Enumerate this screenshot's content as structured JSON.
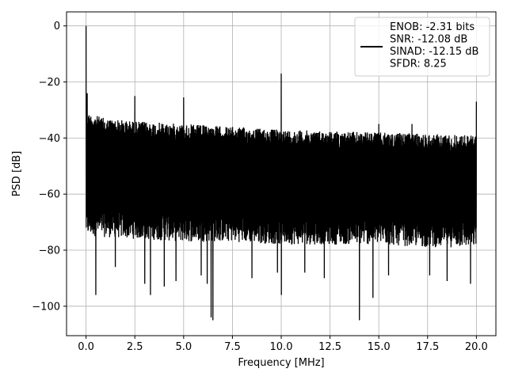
{
  "chart_data": {
    "type": "line",
    "title": "",
    "xlabel": "Frequency [MHz]",
    "ylabel": "PSD [dB]",
    "xlim": [
      -1.0,
      21.0
    ],
    "ylim": [
      -110.5,
      5.0
    ],
    "xticks": [
      0.0,
      2.5,
      5.0,
      7.5,
      10.0,
      12.5,
      15.0,
      17.5,
      20.0
    ],
    "xtick_labels": [
      "0.0",
      "2.5",
      "5.0",
      "7.5",
      "10.0",
      "12.5",
      "15.0",
      "17.5",
      "20.0"
    ],
    "yticks": [
      0,
      -20,
      -40,
      -60,
      -80,
      -100
    ],
    "ytick_labels": [
      "0",
      "−20",
      "−40",
      "−60",
      "−80",
      "−100"
    ],
    "grid": true,
    "legend_position": "top-right",
    "line_color": "#000000",
    "series": [
      {
        "legend_lines": [
          "ENOB: -2.31 bits",
          "SNR: -12.08 dB",
          "SINAD: -12.15 dB",
          "SFDR: 8.25"
        ],
        "noise": {
          "x_range": [
            0.0,
            20.0
          ],
          "upper_envelope": [
            [
              0.05,
              -31
            ],
            [
              1.0,
              -33
            ],
            [
              2.5,
              -34
            ],
            [
              5.0,
              -35
            ],
            [
              7.5,
              -36
            ],
            [
              10.0,
              -37
            ],
            [
              12.5,
              -37.5
            ],
            [
              15.0,
              -38
            ],
            [
              17.5,
              -38.5
            ],
            [
              20.0,
              -39
            ]
          ],
          "lower_envelope": [
            [
              0.05,
              -75
            ],
            [
              2.5,
              -76
            ],
            [
              5.0,
              -77
            ],
            [
              7.5,
              -77
            ],
            [
              10.0,
              -78
            ],
            [
              12.5,
              -78
            ],
            [
              15.0,
              -78
            ],
            [
              17.5,
              -79
            ],
            [
              20.0,
              -79
            ]
          ],
          "deep_dips": [
            [
              0.5,
              -96
            ],
            [
              1.5,
              -86
            ],
            [
              3.0,
              -92
            ],
            [
              3.3,
              -96
            ],
            [
              4.0,
              -93
            ],
            [
              4.6,
              -91
            ],
            [
              5.9,
              -89
            ],
            [
              6.2,
              -92
            ],
            [
              6.4,
              -104
            ],
            [
              6.5,
              -105
            ],
            [
              8.5,
              -90
            ],
            [
              9.8,
              -88
            ],
            [
              10.0,
              -96
            ],
            [
              11.2,
              -88
            ],
            [
              12.2,
              -90
            ],
            [
              14.0,
              -105
            ],
            [
              14.7,
              -97
            ],
            [
              15.5,
              -89
            ],
            [
              17.6,
              -89
            ],
            [
              18.5,
              -91
            ],
            [
              19.7,
              -92
            ]
          ]
        },
        "peaks": [
          [
            0.0,
            0.0
          ],
          [
            0.06,
            -24
          ],
          [
            2.5,
            -25
          ],
          [
            5.0,
            -25.5
          ],
          [
            10.0,
            -17
          ],
          [
            15.0,
            -35
          ],
          [
            16.7,
            -35
          ],
          [
            20.0,
            -27
          ]
        ]
      }
    ]
  }
}
